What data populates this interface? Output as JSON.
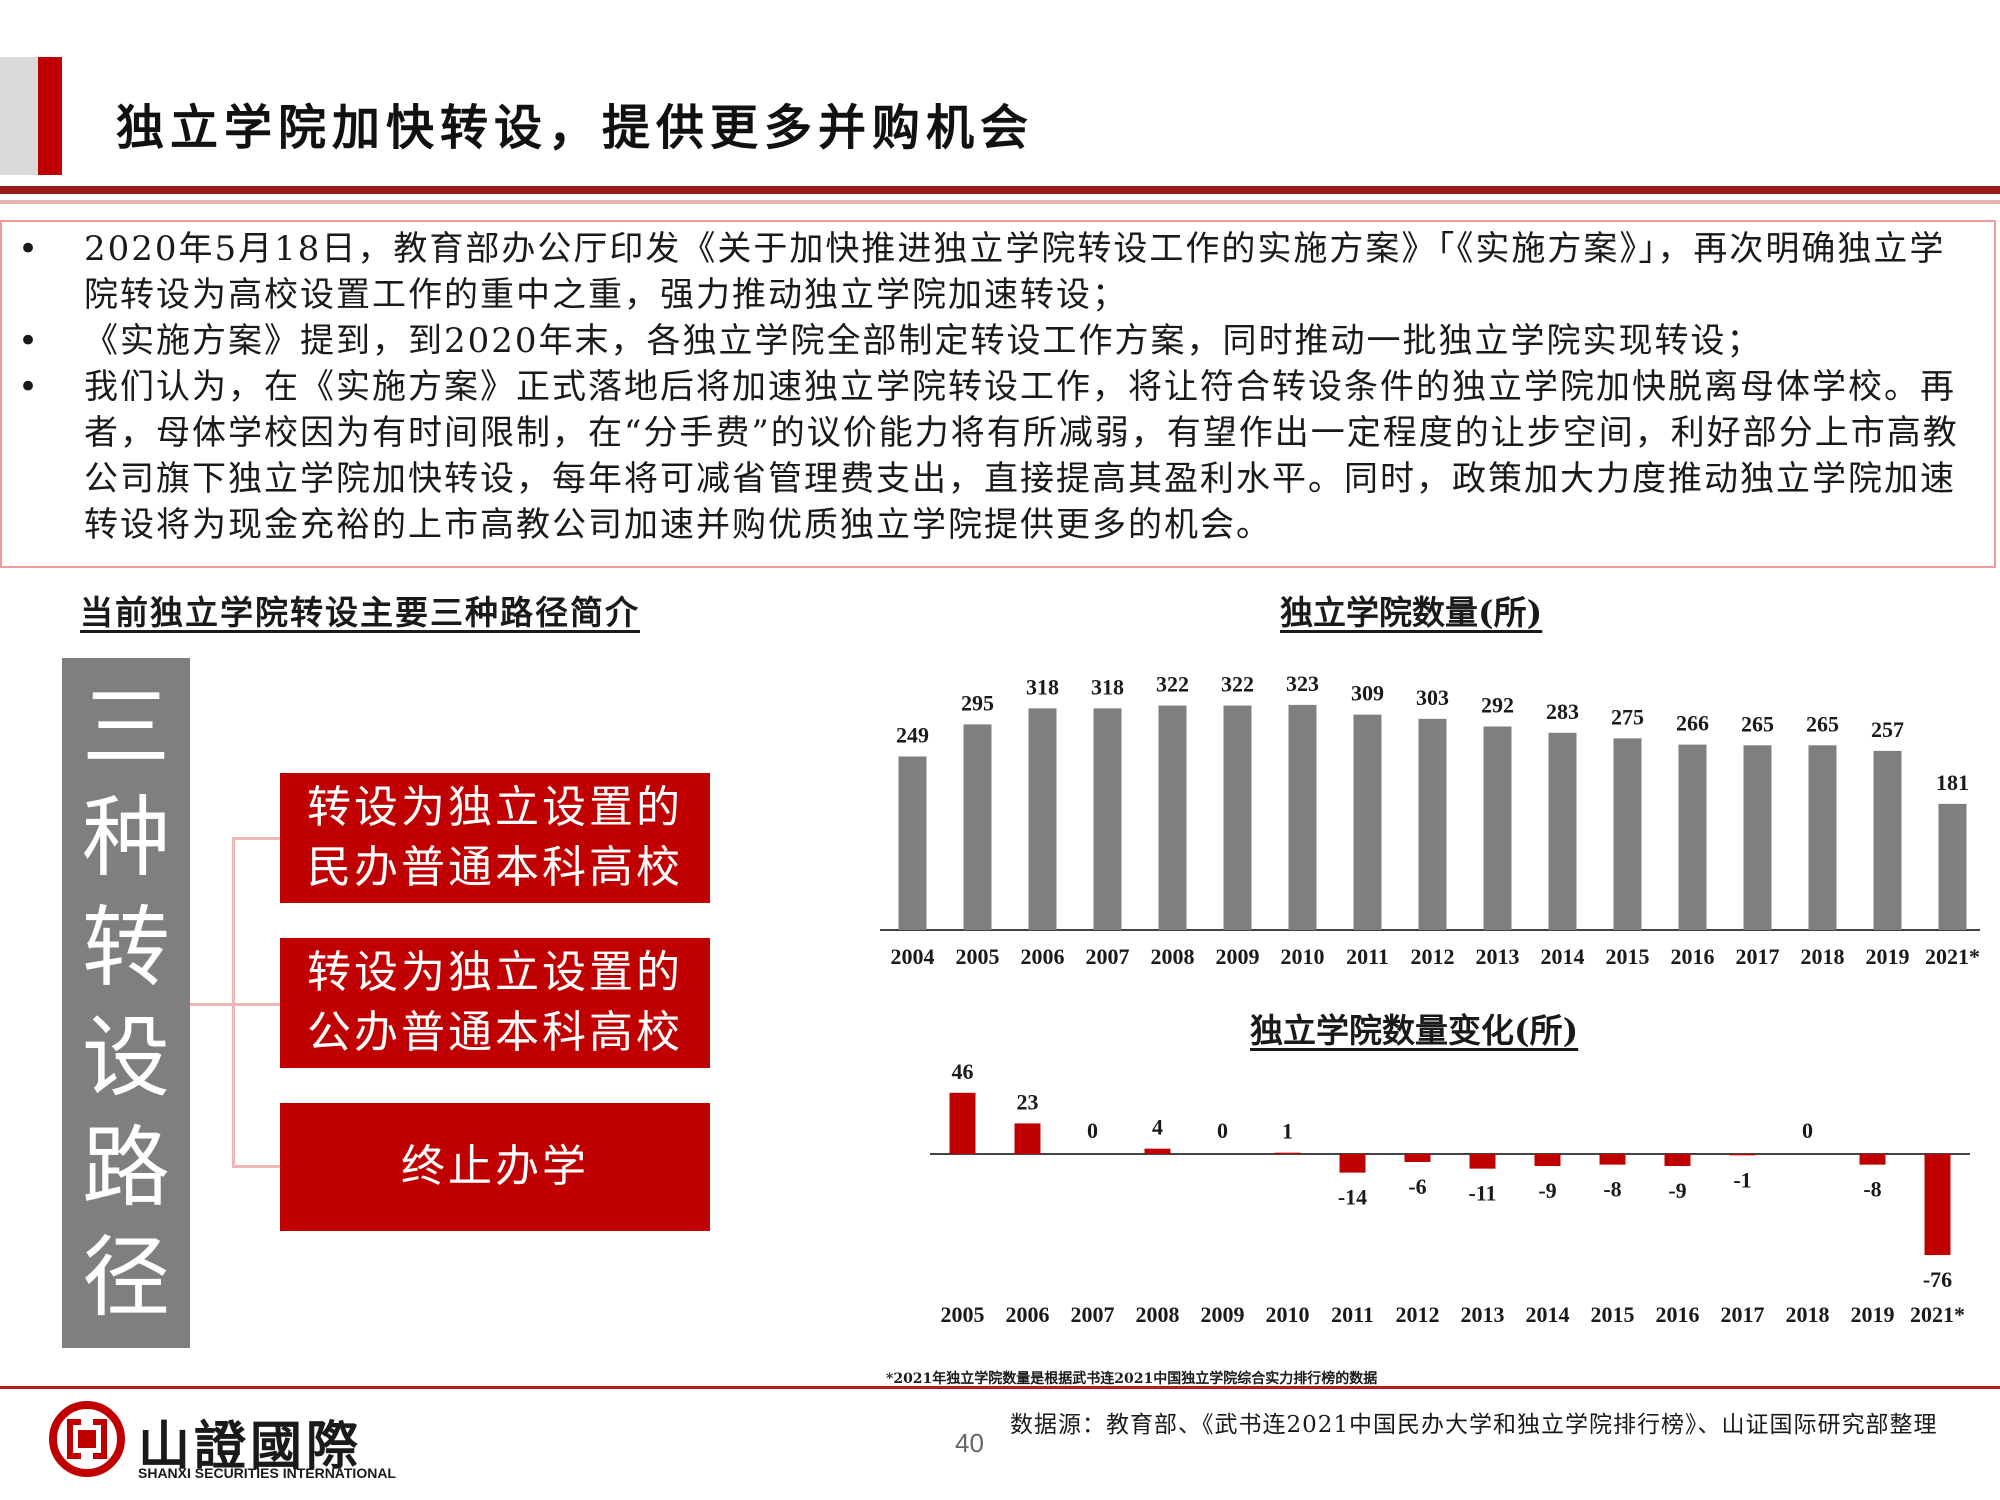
{
  "slide": {
    "title": "独立学院加快转设，提供更多并购机会",
    "page_number": "40"
  },
  "bullets": [
    "2020年5月18日，教育部办公厅印发《关于加快推进独立学院转设工作的实施方案》「《实施方案》」，再次明确独立学院转设为高校设置工作的重中之重，强力推动独立学院加速转设；",
    "《实施方案》提到，到2020年末，各独立学院全部制定转设工作方案，同时推动一批独立学院实现转设；",
    "我们认为，在《实施方案》正式落地后将加速独立学院转设工作，将让符合转设条件的独立学院加快脱离母体学校。再者，母体学校因为有时间限制，在“分手费”的议价能力将有所减弱，有望作出一定程度的让步空间，利好部分上市高教公司旗下独立学院加快转设，每年将可减省管理费支出，直接提高其盈利水平。同时，政策加大力度推动独立学院加速转设将为现金充裕的上市高教公司加速并购优质独立学院提供更多的机会。"
  ],
  "paths": {
    "heading": "当前独立学院转设主要三种路径简介",
    "vertical_label": [
      "三",
      "种",
      "转",
      "设",
      "路",
      "径"
    ],
    "items": [
      [
        "转设为独立设置的",
        "民办普通本科高校"
      ],
      [
        "转设为独立设置的",
        "公办普通本科高校"
      ],
      [
        "终止办学"
      ]
    ]
  },
  "colors": {
    "accent_red": "#c00000",
    "bar_grey": "#7f7f7f",
    "negative_red": "#c00000"
  },
  "chart_data": [
    {
      "type": "bar",
      "title": "独立学院数量(所)",
      "categories": [
        "2004",
        "2005",
        "2006",
        "2007",
        "2008",
        "2009",
        "2010",
        "2011",
        "2012",
        "2013",
        "2014",
        "2015",
        "2016",
        "2017",
        "2018",
        "2019",
        "2021*"
      ],
      "values": [
        249,
        295,
        318,
        318,
        322,
        322,
        323,
        309,
        303,
        292,
        283,
        275,
        266,
        265,
        265,
        257,
        181
      ],
      "ylim": [
        0,
        330
      ],
      "grid": false,
      "color": "#7f7f7f"
    },
    {
      "type": "bar",
      "title": "独立学院数量变化(所)",
      "categories": [
        "2005",
        "2006",
        "2007",
        "2008",
        "2009",
        "2010",
        "2011",
        "2012",
        "2013",
        "2014",
        "2015",
        "2016",
        "2017",
        "2018",
        "2019",
        "2021*"
      ],
      "values": [
        46,
        23,
        0,
        4,
        0,
        1,
        -14,
        -6,
        -11,
        -9,
        -8,
        -9,
        -1,
        0,
        -8,
        -76
      ],
      "ylim": [
        -80,
        50
      ],
      "grid": false,
      "color": "#c00000"
    }
  ],
  "footer": {
    "footnote": "*2021年独立学院数量是根据武书连2021中国独立学院综合实力排行榜的数据",
    "source": "数据源：教育部、《武书连2021中国民办大学和独立学院排行榜》、山证国际研究部整理",
    "logo_text": "山證國際",
    "logo_subtext": "SHANXI SECURITIES INTERNATIONAL"
  }
}
